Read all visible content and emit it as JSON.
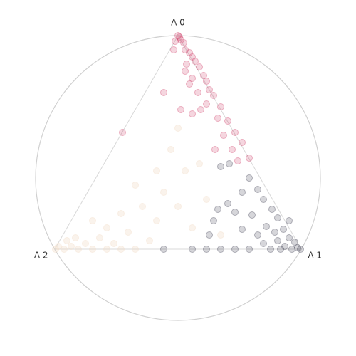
{
  "chart_data": {
    "type": "radviz",
    "anchors": [
      "A 0",
      "A 1",
      "A 2"
    ],
    "xlim": [
      -1,
      1
    ],
    "ylim": [
      -1,
      1
    ],
    "series": [
      {
        "color": "#c8194b",
        "x": [
          0,
          0.01,
          0.02,
          0.04,
          -0.02,
          0.05,
          0.08,
          -0.03,
          0.1,
          0.12,
          0.06,
          0.15,
          0.18,
          0.1,
          0.2,
          0.22,
          0.14,
          0.25,
          0.08,
          -0.39,
          0.3,
          0.28,
          0.35,
          0.32,
          0.4,
          0.38,
          0.45,
          0.5,
          0.02,
          0.1,
          -0.1,
          0.2,
          0.05,
          0.26,
          0.42,
          0.16
        ],
        "y": [
          1,
          0.99,
          0.97,
          0.95,
          0.96,
          0.9,
          0.88,
          0.9,
          0.85,
          0.82,
          0.8,
          0.78,
          0.72,
          0.7,
          0.68,
          0.62,
          0.6,
          0.58,
          0.66,
          0.32,
          0.5,
          0.42,
          0.4,
          0.3,
          0.32,
          0.2,
          0.25,
          0.14,
          0.48,
          0.45,
          0.6,
          0.52,
          0.75,
          0.2,
          0.12,
          0.48
        ]
      },
      {
        "color": "#1a1a33",
        "x": [
          0.86,
          0.84,
          0.8,
          0.82,
          0.78,
          0.75,
          0.72,
          0.7,
          0.74,
          0.68,
          0.65,
          0.6,
          0.62,
          0.7,
          0.66,
          0.56,
          0.5,
          0.45,
          0.52,
          0.4,
          0.3,
          0.2,
          0.1,
          -0.1,
          0.25,
          0.35,
          0.45,
          0.5,
          0.3,
          0.36,
          0.56,
          0.6,
          0.22,
          0.28,
          0.4,
          0.78
        ],
        "y": [
          -0.5,
          -0.49,
          -0.5,
          -0.45,
          -0.42,
          -0.48,
          -0.5,
          -0.44,
          -0.36,
          -0.38,
          -0.5,
          -0.46,
          -0.34,
          -0.28,
          -0.22,
          -0.4,
          -0.5,
          -0.36,
          -0.26,
          -0.5,
          -0.5,
          -0.5,
          -0.5,
          -0.5,
          -0.3,
          -0.18,
          -0.1,
          0,
          0.08,
          0.1,
          -0.08,
          -0.15,
          -0.4,
          -0.22,
          -0.24,
          -0.3
        ]
      },
      {
        "color": "#f2dcc8",
        "x": [
          -0.86,
          -0.84,
          -0.8,
          -0.78,
          -0.75,
          -0.7,
          -0.72,
          -0.65,
          -0.6,
          -0.55,
          -0.5,
          -0.45,
          -0.4,
          -0.35,
          -0.3,
          -0.2,
          -0.15,
          -0.25,
          -0.1,
          0,
          0.05,
          -0.3,
          0.1,
          -0.05,
          0.15,
          -0.4,
          -0.6,
          0.2,
          0,
          -0.15,
          0.3,
          -0.5
        ],
        "y": [
          -0.5,
          -0.48,
          -0.5,
          -0.44,
          -0.48,
          -0.5,
          -0.42,
          -0.46,
          -0.5,
          -0.42,
          -0.5,
          -0.46,
          -0.5,
          -0.38,
          -0.5,
          -0.44,
          -0.3,
          -0.2,
          -0.1,
          -0.2,
          0.05,
          -0.05,
          -0.35,
          0.2,
          0.1,
          -0.25,
          -0.3,
          -0.15,
          0.35,
          0.05,
          -0.4,
          -0.35
        ]
      }
    ]
  }
}
